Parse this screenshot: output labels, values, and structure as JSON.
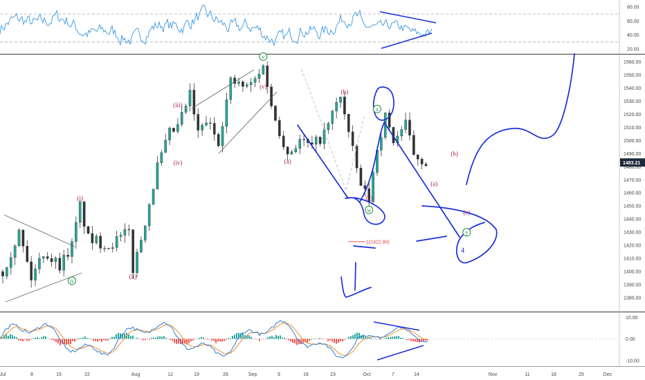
{
  "colors": {
    "up": "#26a69a",
    "down": "#ef5350",
    "candle": "#333333",
    "rsi_line": "#4a9fe0",
    "drawing_blue": "#1a2fd6",
    "wave_purple": "#a0205a",
    "wave_green": "#1e8c3a",
    "fib_red": "#e04040",
    "macd_line": "#2b7bd6",
    "signal_line": "#f28a2c",
    "hist_up": "#26a69a",
    "hist_down": "#ef5350",
    "price_tag_bg": "#1e2a3a"
  },
  "chart_data": [
    {
      "type": "line",
      "panel": "rsi",
      "y_ticks": [
        "80.00",
        "60.00",
        "40.00",
        "20.00"
      ],
      "ylim": [
        15,
        88
      ],
      "levels": [
        70,
        30
      ]
    },
    {
      "type": "candlestick",
      "panel": "price",
      "ylim": [
        1370,
        1565
      ],
      "y_ticks": [
        "1560.00",
        "1550.00",
        "1540.00",
        "1530.00",
        "1520.00",
        "1510.00",
        "1500.00",
        "1490.00",
        "1480.00",
        "1470.00",
        "1460.00",
        "1450.00",
        "1440.00",
        "1430.00",
        "1420.00",
        "1410.00",
        "1400.00",
        "1390.00",
        "1380.00"
      ],
      "last_price": "1483.21",
      "x_dates": [
        "Jul",
        "8",
        "15",
        "22",
        "Aug",
        "12",
        "19",
        "26",
        "Sep",
        "9",
        "16",
        "23",
        "Oct",
        "7",
        "14",
        "Nov",
        "11",
        "18",
        "25",
        "Dec"
      ],
      "anchors": [
        {
          "d": 0,
          "p": 1400
        },
        {
          "d": 4,
          "p": 1430
        },
        {
          "d": 7,
          "p": 1395
        },
        {
          "d": 10,
          "p": 1415
        },
        {
          "d": 14,
          "p": 1405
        },
        {
          "d": 17,
          "p": 1420
        },
        {
          "d": 19,
          "p": 1450
        },
        {
          "d": 21,
          "p": 1425
        },
        {
          "d": 26,
          "p": 1420
        },
        {
          "d": 31,
          "p": 1430
        },
        {
          "d": 32,
          "p": 1402
        },
        {
          "d": 34,
          "p": 1425
        },
        {
          "d": 38,
          "p": 1480
        },
        {
          "d": 41,
          "p": 1505
        },
        {
          "d": 43,
          "p": 1510
        },
        {
          "d": 46,
          "p": 1535
        },
        {
          "d": 48,
          "p": 1505
        },
        {
          "d": 50,
          "p": 1515
        },
        {
          "d": 53,
          "p": 1500
        },
        {
          "d": 56,
          "p": 1545
        },
        {
          "d": 60,
          "p": 1540
        },
        {
          "d": 63,
          "p": 1550
        },
        {
          "d": 64,
          "p": 1560
        },
        {
          "d": 66,
          "p": 1525
        },
        {
          "d": 70,
          "p": 1490
        },
        {
          "d": 73,
          "p": 1500
        },
        {
          "d": 76,
          "p": 1495
        },
        {
          "d": 79,
          "p": 1505
        },
        {
          "d": 83,
          "p": 1535
        },
        {
          "d": 85,
          "p": 1505
        },
        {
          "d": 88,
          "p": 1465
        },
        {
          "d": 90,
          "p": 1455
        },
        {
          "d": 92,
          "p": 1495
        },
        {
          "d": 94,
          "p": 1518
        },
        {
          "d": 96,
          "p": 1500
        },
        {
          "d": 99,
          "p": 1512
        },
        {
          "d": 101,
          "p": 1490
        },
        {
          "d": 104,
          "p": 1483.21
        }
      ],
      "wave_labels": [
        {
          "text": "(i)",
          "d": 19,
          "p": 1456,
          "color": "wave_purple",
          "circle": false
        },
        {
          "text": "(ii)",
          "d": 32,
          "p": 1396,
          "color": "wave_purple",
          "circle": false
        },
        {
          "text": "(iii)",
          "d": 43,
          "p": 1527,
          "color": "wave_purple",
          "circle": false
        },
        {
          "text": "(iv)",
          "d": 43,
          "p": 1483,
          "color": "wave_purple",
          "circle": false
        },
        {
          "text": "iv",
          "d": 17,
          "p": 1393,
          "color": "wave_green",
          "circle": true
        },
        {
          "text": "v",
          "d": 64,
          "p": 1564,
          "color": "wave_green",
          "circle": true
        },
        {
          "text": "(v)",
          "d": 64,
          "p": 1541,
          "color": "wave_purple",
          "circle": false
        },
        {
          "text": "(a)",
          "d": 70,
          "p": 1484,
          "color": "wave_purple",
          "circle": false
        },
        {
          "text": "(b)",
          "d": 84,
          "p": 1537,
          "color": "wave_purple",
          "circle": false
        },
        {
          "text": "(c)",
          "d": 90,
          "p": 1456,
          "color": "wave_purple",
          "circle": false
        },
        {
          "text": "w",
          "d": 90,
          "p": 1447,
          "color": "wave_green",
          "circle": true
        },
        {
          "text": "x",
          "d": 92,
          "p": 1524,
          "color": "wave_green",
          "circle": true
        },
        {
          "text": "(b)",
          "d": 111,
          "p": 1490,
          "color": "wave_purple",
          "circle": false
        },
        {
          "text": "(a)",
          "d": 106,
          "p": 1467,
          "color": "wave_purple",
          "circle": false
        },
        {
          "text": "(c)",
          "d": 114,
          "p": 1445,
          "color": "wave_purple",
          "circle": false
        },
        {
          "text": "y",
          "d": 114,
          "p": 1430,
          "color": "wave_green",
          "circle": true
        },
        {
          "text": "4",
          "d": 113,
          "p": 1416,
          "color": "drawing_blue",
          "circle": false
        }
      ],
      "fib_label": "1(1422.80)",
      "fib_level": 1422.8
    },
    {
      "type": "line",
      "panel": "macd",
      "y_ticks": [
        "10.00",
        "0.00",
        "-10.00"
      ],
      "ylim": [
        -12,
        12
      ]
    }
  ]
}
